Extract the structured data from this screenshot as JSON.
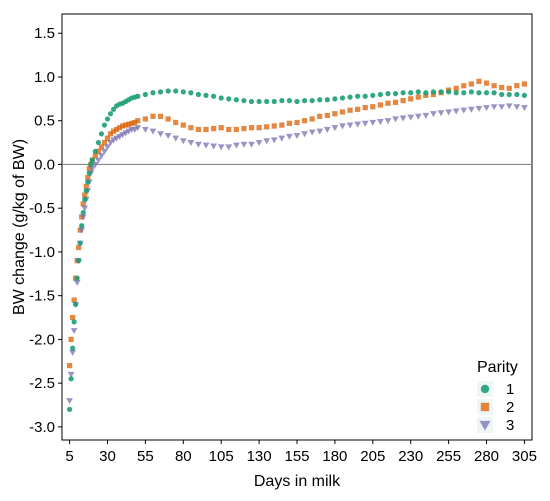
{
  "chart_data": {
    "type": "scatter",
    "title": "",
    "xlabel": "Days in milk",
    "ylabel": "BW change (g/kg of BW)",
    "xlim": [
      0,
      310
    ],
    "ylim": [
      -3.15,
      1.72
    ],
    "x_ticks": [
      5,
      30,
      55,
      80,
      105,
      130,
      155,
      180,
      205,
      230,
      255,
      280,
      305
    ],
    "x_tick_labels": [
      "5",
      "30",
      "55",
      "80",
      "105",
      "130",
      "155",
      "180",
      "205",
      "230",
      "255",
      "280",
      "305"
    ],
    "y_ticks": [
      -3.0,
      -2.5,
      -2.0,
      -1.5,
      -1.0,
      -0.5,
      0.0,
      0.5,
      1.0,
      1.5
    ],
    "y_tick_labels": [
      "-3.0",
      "-2.5",
      "-2.0",
      "-1.5",
      "-1.0",
      "-0.5",
      "0.0",
      "0.5",
      "1.0",
      "1.5"
    ],
    "reference_line_y": 0.0,
    "grid": false,
    "legend": {
      "title": "Parity",
      "position": "bottom-right"
    },
    "series": [
      {
        "name": "1",
        "marker": "circle",
        "color": "#1b9e77",
        "x": [
          5,
          6,
          7,
          8,
          9,
          10,
          11,
          12,
          13,
          14,
          15,
          16,
          17,
          18,
          19,
          20,
          22,
          24,
          26,
          28,
          30,
          32,
          34,
          36,
          38,
          40,
          42,
          44,
          46,
          48,
          50,
          55,
          60,
          65,
          70,
          75,
          80,
          85,
          90,
          95,
          100,
          105,
          110,
          115,
          120,
          125,
          130,
          135,
          140,
          145,
          150,
          155,
          160,
          165,
          170,
          175,
          180,
          185,
          190,
          195,
          200,
          205,
          210,
          215,
          220,
          225,
          230,
          235,
          240,
          245,
          250,
          255,
          260,
          265,
          270,
          275,
          280,
          285,
          290,
          295,
          300,
          305
        ],
        "y": [
          -2.8,
          -2.45,
          -2.1,
          -1.8,
          -1.6,
          -1.3,
          -1.1,
          -0.9,
          -0.7,
          -0.55,
          -0.4,
          -0.3,
          -0.2,
          -0.1,
          0.0,
          0.05,
          0.15,
          0.25,
          0.35,
          0.45,
          0.52,
          0.58,
          0.63,
          0.67,
          0.69,
          0.7,
          0.72,
          0.74,
          0.76,
          0.77,
          0.78,
          0.8,
          0.82,
          0.83,
          0.84,
          0.84,
          0.83,
          0.82,
          0.8,
          0.79,
          0.78,
          0.76,
          0.75,
          0.74,
          0.73,
          0.72,
          0.72,
          0.72,
          0.72,
          0.73,
          0.73,
          0.72,
          0.73,
          0.73,
          0.74,
          0.74,
          0.75,
          0.76,
          0.77,
          0.78,
          0.78,
          0.79,
          0.8,
          0.81,
          0.81,
          0.82,
          0.82,
          0.83,
          0.82,
          0.83,
          0.83,
          0.83,
          0.82,
          0.82,
          0.83,
          0.82,
          0.82,
          0.82,
          0.8,
          0.8,
          0.8,
          0.79
        ]
      },
      {
        "name": "2",
        "marker": "square",
        "color": "#d95f02",
        "x": [
          5,
          6,
          7,
          8,
          9,
          10,
          11,
          12,
          13,
          14,
          15,
          16,
          17,
          18,
          19,
          20,
          22,
          24,
          26,
          28,
          30,
          32,
          34,
          36,
          38,
          40,
          42,
          44,
          46,
          48,
          50,
          55,
          60,
          65,
          70,
          75,
          80,
          85,
          90,
          95,
          100,
          105,
          110,
          115,
          120,
          125,
          130,
          135,
          140,
          145,
          150,
          155,
          160,
          165,
          170,
          175,
          180,
          185,
          190,
          195,
          200,
          205,
          210,
          215,
          220,
          225,
          230,
          235,
          240,
          245,
          250,
          255,
          260,
          265,
          270,
          275,
          280,
          285,
          290,
          295,
          300,
          305
        ],
        "y": [
          -2.3,
          -2.0,
          -1.75,
          -1.55,
          -1.3,
          -1.1,
          -0.95,
          -0.75,
          -0.6,
          -0.45,
          -0.35,
          -0.25,
          -0.15,
          -0.05,
          0.0,
          0.05,
          0.1,
          0.15,
          0.2,
          0.25,
          0.3,
          0.35,
          0.38,
          0.4,
          0.42,
          0.44,
          0.45,
          0.46,
          0.47,
          0.48,
          0.5,
          0.52,
          0.55,
          0.55,
          0.52,
          0.48,
          0.45,
          0.42,
          0.4,
          0.4,
          0.41,
          0.42,
          0.4,
          0.4,
          0.41,
          0.42,
          0.42,
          0.43,
          0.44,
          0.45,
          0.47,
          0.48,
          0.5,
          0.52,
          0.55,
          0.56,
          0.58,
          0.6,
          0.62,
          0.63,
          0.65,
          0.66,
          0.68,
          0.7,
          0.71,
          0.73,
          0.75,
          0.77,
          0.79,
          0.8,
          0.82,
          0.85,
          0.87,
          0.9,
          0.92,
          0.95,
          0.93,
          0.9,
          0.88,
          0.87,
          0.9,
          0.92
        ]
      },
      {
        "name": "3",
        "marker": "triangle-down",
        "color": "#7570b3",
        "x": [
          5,
          6,
          7,
          8,
          9,
          10,
          11,
          12,
          13,
          14,
          15,
          16,
          17,
          18,
          19,
          20,
          22,
          24,
          26,
          28,
          30,
          32,
          34,
          36,
          38,
          40,
          42,
          44,
          46,
          48,
          50,
          55,
          60,
          65,
          70,
          75,
          80,
          85,
          90,
          95,
          100,
          105,
          110,
          115,
          120,
          125,
          130,
          135,
          140,
          145,
          150,
          155,
          160,
          165,
          170,
          175,
          180,
          185,
          190,
          195,
          200,
          205,
          210,
          215,
          220,
          225,
          230,
          235,
          240,
          245,
          250,
          255,
          260,
          265,
          270,
          275,
          280,
          285,
          290,
          295,
          300,
          305
        ],
        "y": [
          -2.7,
          -2.4,
          -2.15,
          -1.9,
          -1.6,
          -1.35,
          -1.1,
          -0.9,
          -0.75,
          -0.6,
          -0.5,
          -0.4,
          -0.3,
          -0.2,
          -0.1,
          -0.05,
          0.0,
          0.05,
          0.1,
          0.15,
          0.2,
          0.25,
          0.28,
          0.3,
          0.32,
          0.34,
          0.36,
          0.38,
          0.4,
          0.4,
          0.42,
          0.4,
          0.38,
          0.35,
          0.33,
          0.3,
          0.27,
          0.25,
          0.23,
          0.22,
          0.21,
          0.2,
          0.2,
          0.22,
          0.23,
          0.23,
          0.25,
          0.27,
          0.28,
          0.3,
          0.32,
          0.33,
          0.35,
          0.37,
          0.38,
          0.4,
          0.42,
          0.44,
          0.45,
          0.46,
          0.47,
          0.48,
          0.49,
          0.5,
          0.52,
          0.53,
          0.54,
          0.55,
          0.56,
          0.58,
          0.59,
          0.6,
          0.61,
          0.62,
          0.63,
          0.64,
          0.65,
          0.66,
          0.66,
          0.67,
          0.66,
          0.65
        ]
      }
    ]
  }
}
